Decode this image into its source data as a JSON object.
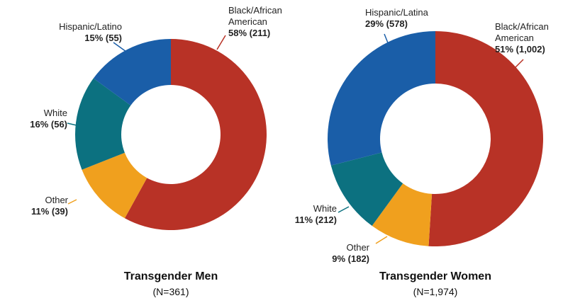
{
  "chart_data": [
    {
      "type": "donut",
      "title": "Transgender Men",
      "subtitle": "(N=361)",
      "categories": [
        "Black/African American",
        "Other",
        "White",
        "Hispanic/Latino"
      ],
      "values": [
        58,
        11,
        16,
        15
      ],
      "value_labels": [
        "58% (211)",
        "11% (39)",
        "16% (56)",
        "15% (55)"
      ],
      "colors": [
        "#b83226",
        "#f0a01e",
        "#0c7180",
        "#1a5ea8"
      ]
    },
    {
      "type": "donut",
      "title": "Transgender Women",
      "subtitle": "(N=1,974)",
      "categories": [
        "Black/African American",
        "Other",
        "White",
        "Hispanic/Latina"
      ],
      "values": [
        51,
        9,
        11,
        29
      ],
      "value_labels": [
        "51% (1,002)",
        "9% (182)",
        "11% (212)",
        "29% (578)"
      ],
      "colors": [
        "#b83226",
        "#f0a01e",
        "#0c7180",
        "#1a5ea8"
      ]
    }
  ]
}
